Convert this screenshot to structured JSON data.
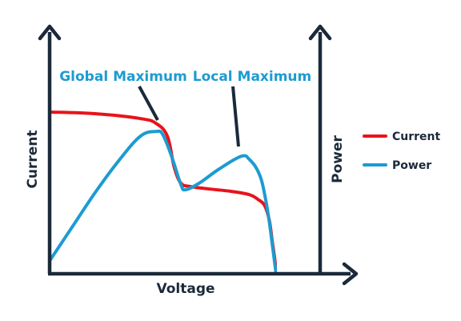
{
  "chart_data": {
    "type": "line",
    "xlabel": "Voltage",
    "ylabel": "Current",
    "ylabel_right": "Power",
    "xlim": [
      0,
      100
    ],
    "ylim": [
      0,
      100
    ],
    "axis_ticks": false,
    "grid": false,
    "legend_position": "right",
    "series": [
      {
        "name": "Current",
        "color": "#e8131b",
        "axis": "left",
        "x": [
          0,
          20,
          40,
          47,
          52,
          55,
          58,
          62,
          70,
          80,
          88,
          92,
          95,
          97,
          98.3,
          99.5,
          100
        ],
        "y": [
          100,
          99,
          96,
          93,
          85,
          66,
          56,
          54,
          52.5,
          51,
          49,
          46,
          42,
          33,
          20,
          8,
          0
        ]
      },
      {
        "name": "Power",
        "color": "#1d9bd1",
        "axis": "right",
        "x": [
          0,
          10,
          20,
          30,
          40,
          47,
          50,
          54,
          58,
          60,
          66,
          74,
          82,
          86,
          88,
          91,
          93.5,
          95.5,
          97,
          98.5,
          100
        ],
        "y": [
          8,
          29,
          50,
          69,
          85,
          88,
          86,
          72,
          55,
          52,
          56,
          64,
          71,
          73,
          71,
          66,
          58,
          45,
          32,
          16,
          0
        ]
      }
    ],
    "annotations": [
      {
        "text": "Global Maximum",
        "x": 47,
        "y": 88
      },
      {
        "text": "Local Maximum",
        "x": 84,
        "y": 73
      }
    ]
  }
}
